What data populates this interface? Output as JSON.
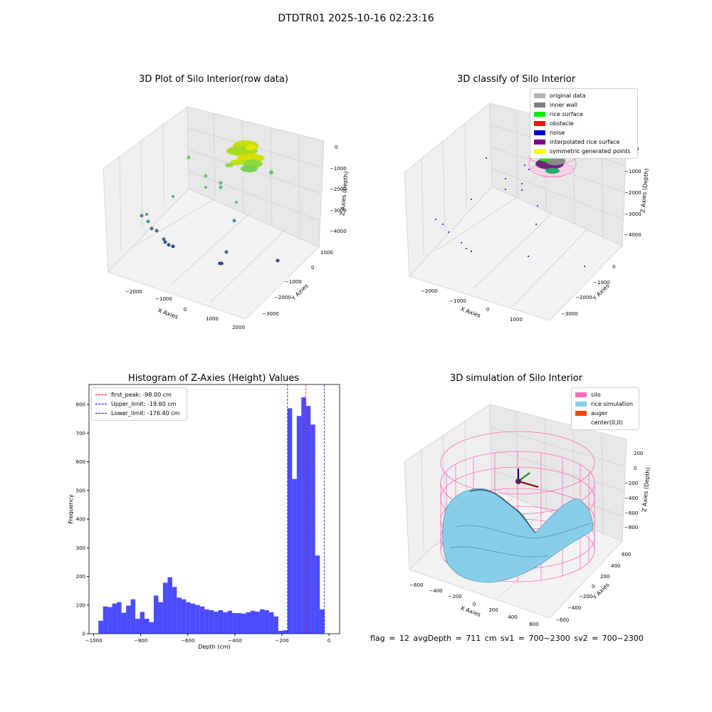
{
  "page_title": "DTDTR01 2025-10-16 02:23:16",
  "panels": {
    "raw": {
      "title": "3D Plot of Silo Interior(row data)",
      "xlabel": "X Axies",
      "ylabel": "Y Axies",
      "zlabel": "Z Axies (Depth)",
      "xticks": [
        "−2000",
        "−1000",
        "0",
        "1000",
        "2000"
      ],
      "yticks": [
        "1000",
        "0",
        "−1000",
        "−2000",
        "−3000"
      ],
      "zticks": [
        "0",
        "−1000",
        "−2000",
        "−3000",
        "−4000"
      ]
    },
    "classify": {
      "title": "3D classify of Silo Interior",
      "xlabel": "X Axies",
      "ylabel": "Y Axies",
      "zlabel": "Z Axies (Depth)",
      "xticks": [
        "−2000",
        "−1000",
        "0",
        "1000"
      ],
      "yticks": [
        "0",
        "−1000",
        "−2000",
        "−3000"
      ],
      "zticks": [
        "0",
        "−1000",
        "−2000",
        "−3000",
        "−4000"
      ],
      "legend": [
        {
          "label": "original data",
          "color": "#b3b3b3"
        },
        {
          "label": "inner wall",
          "color": "#808080"
        },
        {
          "label": "rice surface",
          "color": "#00ee00"
        },
        {
          "label": "obstacle",
          "color": "#ff1010"
        },
        {
          "label": "noise",
          "color": "#0000e0"
        },
        {
          "label": "interpolated rice surface",
          "color": "#800080"
        },
        {
          "label": "symmetric generated points",
          "color": "#ffff00"
        }
      ]
    },
    "histogram": {
      "title": "Histogram of Z-Axies (Height) Values",
      "xlabel": "Depth (cm)",
      "ylabel": "Frequency",
      "legend": [
        {
          "label": "first_peak: -98.00 cm",
          "color": "#ff0000"
        },
        {
          "label": "Upper_limit: -19.60 cm",
          "color": "#0000ff"
        },
        {
          "label": "Lower_limit: -176.40 cm",
          "color": "#0000ff"
        }
      ]
    },
    "simulation": {
      "title": "3D simulation of Silo Interior",
      "xlabel": "X Axies",
      "ylabel": "Y Axies",
      "zlabel": "Z Axies (Depth)",
      "xticks": [
        "−600",
        "−400",
        "−200",
        "0",
        "200",
        "400",
        "600"
      ],
      "yticks": [
        "600",
        "400",
        "200",
        "0",
        "−200",
        "−400",
        "−600"
      ],
      "zticks": [
        "200",
        "0",
        "−200",
        "−400",
        "−600",
        "−800"
      ],
      "legend": [
        {
          "label": "silo",
          "color": "#ff69b4"
        },
        {
          "label": "rice simulation",
          "color": "#87ceeb"
        },
        {
          "label": "auger",
          "color": "#ff4500"
        },
        {
          "label": "center(0,0)",
          "color": ""
        }
      ]
    }
  },
  "bottom_text": "flag = 12  avgDepth = 711 cm  sv1 = 700~2300  sv2 = 700~2300",
  "chart_data": [
    {
      "type": "bar",
      "title": "Histogram of Z-Axies (Height) Values",
      "xlabel": "Depth (cm)",
      "ylabel": "Frequency",
      "xlim": [
        -1000,
        0
      ],
      "ylim": [
        0,
        870
      ],
      "xticks": [
        -1000,
        -800,
        -600,
        -400,
        -200,
        0
      ],
      "yticks": [
        0,
        100,
        200,
        300,
        400,
        500,
        600,
        700,
        800
      ],
      "bin_width": 19.6,
      "bin_start": -980,
      "values": [
        45,
        95,
        93,
        105,
        110,
        73,
        98,
        120,
        52,
        76,
        52,
        40,
        133,
        110,
        178,
        197,
        163,
        126,
        120,
        110,
        105,
        100,
        95,
        85,
        82,
        77,
        82,
        75,
        80,
        72,
        72,
        70,
        75,
        80,
        77,
        85,
        82,
        75,
        60,
        10,
        12,
        787,
        540,
        760,
        825,
        795,
        730,
        273,
        85
      ],
      "bar_color": "#0000ff",
      "vlines": [
        {
          "name": "first_peak",
          "x": -98.0,
          "color": "#ff0000"
        },
        {
          "name": "Upper_limit",
          "x": -19.6,
          "color": "#0000ff"
        },
        {
          "name": "Lower_limit",
          "x": -176.4,
          "color": "#0000ff"
        }
      ],
      "legend_position": "upper left"
    }
  ]
}
